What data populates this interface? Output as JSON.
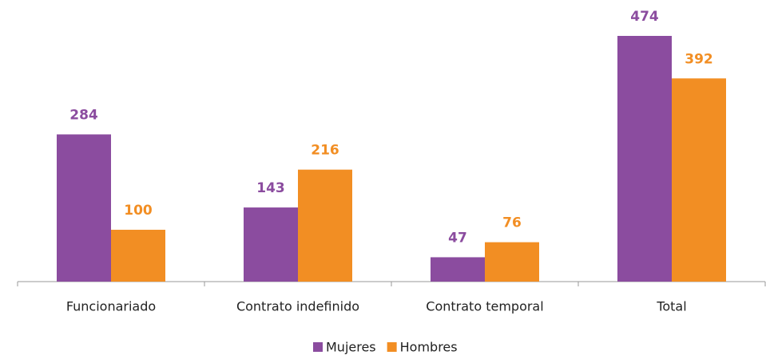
{
  "chart_data": {
    "type": "bar",
    "categories": [
      "Funcionariado",
      "Contrato indefinido",
      "Contrato temporal",
      "Total"
    ],
    "series": [
      {
        "name": "Mujeres",
        "color": "#8b4c9f",
        "values": [
          284,
          143,
          47,
          474
        ]
      },
      {
        "name": "Hombres",
        "color": "#f28e23",
        "values": [
          100,
          216,
          76,
          392
        ]
      }
    ],
    "legend": "bottom"
  }
}
